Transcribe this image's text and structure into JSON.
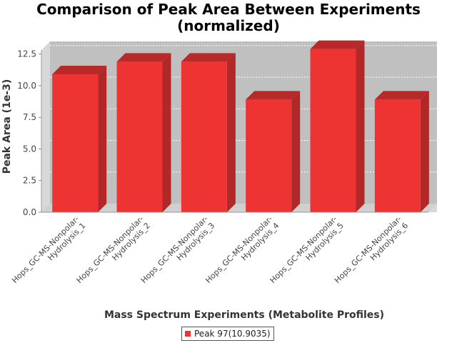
{
  "chart_data": {
    "type": "bar",
    "title": [
      "Comparison of Peak Area Between Experiments",
      "(normalized)"
    ],
    "xlabel": "Mass Spectrum Experiments (Metabolite Profiles)",
    "ylabel": "Peak Area (1e-3)",
    "categories": [
      [
        "Hops_GC-MS-Nonpolar-",
        "Hydrolysis_1"
      ],
      [
        "Hops_GC-MS-Nonpolar-",
        "Hydrolysis_2"
      ],
      [
        "Hops_GC-MS-Nonpolar-",
        "Hydrolysis_3"
      ],
      [
        "Hops_GC-MS-Nonpolar-",
        "Hydrolysis_4"
      ],
      [
        "Hops_GC-MS-Nonpolar-",
        "Hydrolysis_5"
      ],
      [
        "Hops_GC-MS-Nonpolar-",
        "Hydrolysis_6"
      ]
    ],
    "series": [
      {
        "name": "Peak 97(10.9035)",
        "values": [
          10.9,
          11.9,
          11.9,
          8.9,
          12.9,
          8.9
        ]
      }
    ],
    "ylim": [
      0,
      13.5
    ],
    "yticks": [
      "0.0",
      "2.5",
      "5.0",
      "7.5",
      "10.0",
      "12.5"
    ],
    "grid": true,
    "legend_position": "bottom",
    "colors": {
      "bar_front": "#ee3333",
      "bar_side": "#b02828",
      "bar_top": "#b82a2a",
      "plot_background": "#c0c0c0",
      "plot_wall": "#d8d8d8"
    }
  }
}
